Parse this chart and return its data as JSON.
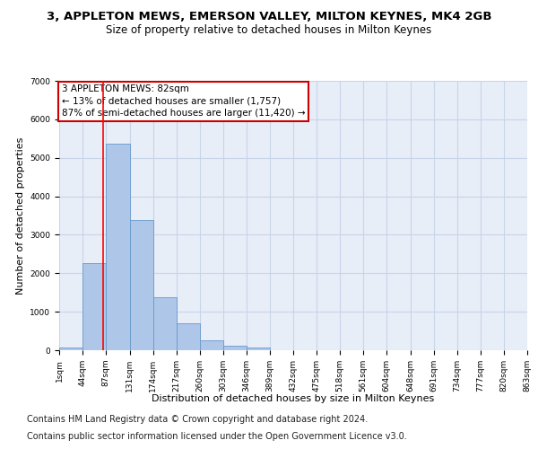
{
  "title": "3, APPLETON MEWS, EMERSON VALLEY, MILTON KEYNES, MK4 2GB",
  "subtitle": "Size of property relative to detached houses in Milton Keynes",
  "xlabel": "Distribution of detached houses by size in Milton Keynes",
  "ylabel": "Number of detached properties",
  "bar_color": "#aec6e8",
  "bar_edge_color": "#6699cc",
  "grid_color": "#c8d4e8",
  "background_color": "#e8eef8",
  "annotation_box_color": "#cc0000",
  "annotation_text": "3 APPLETON MEWS: 82sqm\n← 13% of detached houses are smaller (1,757)\n87% of semi-detached houses are larger (11,420) →",
  "property_line_x": 82,
  "bin_edges": [
    1,
    44,
    87,
    131,
    174,
    217,
    260,
    303,
    346,
    389,
    432,
    475,
    518,
    561,
    604,
    648,
    691,
    734,
    777,
    820,
    863
  ],
  "bar_heights": [
    60,
    2270,
    5370,
    3380,
    1380,
    700,
    250,
    120,
    60,
    10,
    5,
    2,
    1,
    0,
    0,
    0,
    0,
    0,
    0,
    0
  ],
  "ylim": [
    0,
    7000
  ],
  "yticks": [
    0,
    1000,
    2000,
    3000,
    4000,
    5000,
    6000,
    7000
  ],
  "footnote_line1": "Contains HM Land Registry data © Crown copyright and database right 2024.",
  "footnote_line2": "Contains public sector information licensed under the Open Government Licence v3.0.",
  "footnote_fontsize": 7,
  "title_fontsize": 9.5,
  "subtitle_fontsize": 8.5,
  "xlabel_fontsize": 8,
  "ylabel_fontsize": 8,
  "tick_fontsize": 6.5,
  "annotation_fontsize": 7.5
}
